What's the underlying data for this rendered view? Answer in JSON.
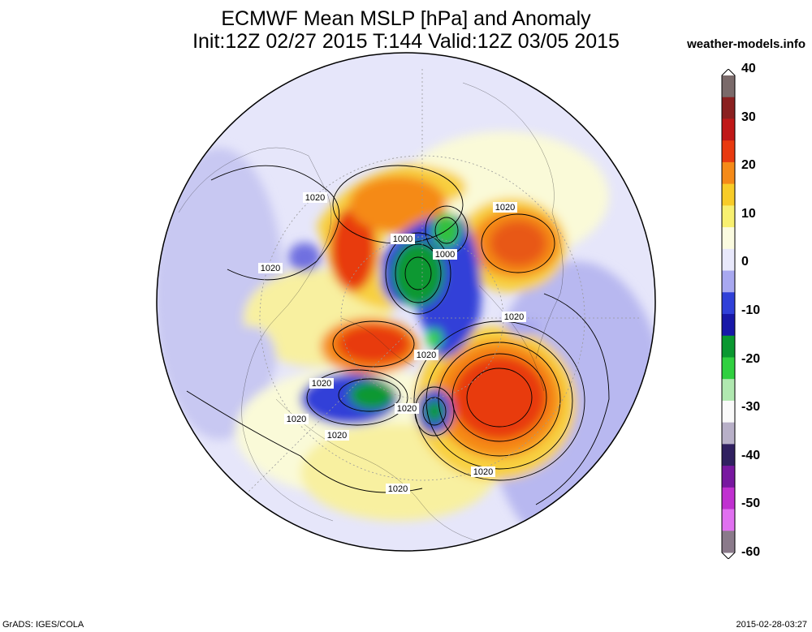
{
  "title_line1": "ECMWF Mean MSLP [hPa] and Anomaly",
  "title_line2": "Init:12Z 02/27 2015 T:144 Valid:12Z 03/05 2015",
  "source": "weather-models.info",
  "footer_left": "GrADS: IGES/COLA",
  "footer_right": "2015-02-28-03:27",
  "colorbar": {
    "labels": [
      "40",
      "30",
      "20",
      "10",
      "0",
      "-10",
      "-20",
      "-30",
      "-40",
      "-50",
      "-60"
    ],
    "min": -60,
    "max": 40,
    "colors": [
      "#7a6a6a",
      "#8a2020",
      "#c01818",
      "#e83a10",
      "#f58a18",
      "#f8cc28",
      "#f8f070",
      "#fbfbe0",
      "#e8e8fb",
      "#a8a8f0",
      "#3040d8",
      "#1818a8",
      "#0a9830",
      "#30d040",
      "#b0e8b0",
      "#fafafa",
      "#b8b0c8",
      "#302060",
      "#7818a0",
      "#c030d0",
      "#e070f0",
      "#8a7a8a"
    ]
  },
  "contour_labels": [
    "1020",
    "1020",
    "1000",
    "1000",
    "1020",
    "1020",
    "1020",
    "1020",
    "1020",
    "1020",
    "1020",
    "1020",
    "1020"
  ],
  "anomaly_features": [
    {
      "kind": "high",
      "name": "north-pacific-high"
    },
    {
      "kind": "high",
      "name": "greenland-high"
    },
    {
      "kind": "high",
      "name": "siberian-high"
    },
    {
      "kind": "low",
      "name": "atlantic-low"
    },
    {
      "kind": "low",
      "name": "north-america-low"
    },
    {
      "kind": "low",
      "name": "arctic-low"
    },
    {
      "kind": "low",
      "name": "europe-low"
    }
  ]
}
